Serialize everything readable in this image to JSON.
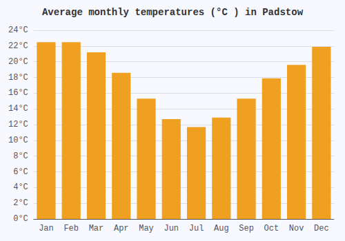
{
  "chart_data": {
    "type": "bar",
    "title": "Average monthly temperatures (°C ) in Padstow",
    "categories": [
      "Jan",
      "Feb",
      "Mar",
      "Apr",
      "May",
      "Jun",
      "Jul",
      "Aug",
      "Sep",
      "Oct",
      "Nov",
      "Dec"
    ],
    "values": [
      22.5,
      22.5,
      21.2,
      18.6,
      15.3,
      12.7,
      11.7,
      12.9,
      15.3,
      17.9,
      19.6,
      21.9
    ],
    "color": "#F0A020",
    "ylim": [
      0,
      24
    ],
    "yticks": [
      {
        "value": 0,
        "label": "0°C"
      },
      {
        "value": 2,
        "label": "2°C"
      },
      {
        "value": 4,
        "label": "4°C"
      },
      {
        "value": 6,
        "label": "6°C"
      },
      {
        "value": 8,
        "label": "8°C"
      },
      {
        "value": 10,
        "label": "10°C"
      },
      {
        "value": 12,
        "label": "12°C"
      },
      {
        "value": 14,
        "label": "14°C"
      },
      {
        "value": 16,
        "label": "16°C"
      },
      {
        "value": 18,
        "label": "18°C"
      },
      {
        "value": 20,
        "label": "20°C"
      },
      {
        "value": 22,
        "label": "22°C"
      },
      {
        "value": 24,
        "label": "24°C"
      }
    ],
    "grid": true
  }
}
